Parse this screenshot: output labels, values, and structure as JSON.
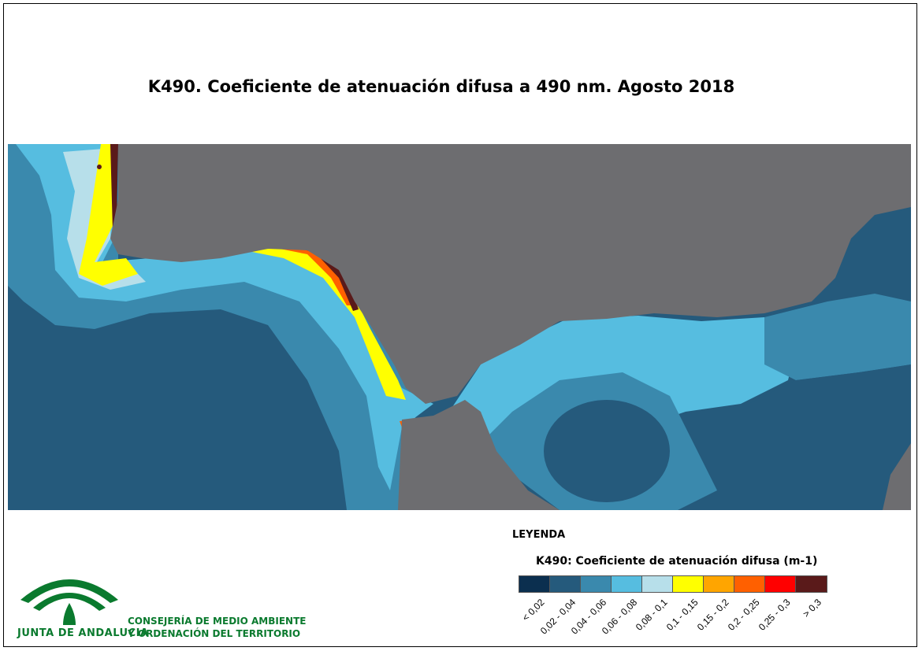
{
  "title": "K490. Coeficiente de atenuación difusa a 490 nm. Agosto 2018",
  "legend": {
    "heading": "LEYENDA",
    "subtitle": "K490: Coeficiente de atenuación difusa (m-1)",
    "classes": [
      {
        "label": "< 0,02",
        "color": "#0b2f4f"
      },
      {
        "label": "0,02 - 0,04",
        "color": "#255a7c"
      },
      {
        "label": "0,04 - 0,06",
        "color": "#3a89ad"
      },
      {
        "label": "0,06 - 0,08",
        "color": "#56bde0"
      },
      {
        "label": "0,08 - 0,1",
        "color": "#b7dfea"
      },
      {
        "label": "0,1 - 0,15",
        "color": "#ffff00"
      },
      {
        "label": "0,15 - 0,2",
        "color": "#ffa500"
      },
      {
        "label": "0,2 - 0,25",
        "color": "#ff6000"
      },
      {
        "label": "0,25 - 0,3",
        "color": "#ff0000"
      },
      {
        "label": "> 0,3",
        "color": "#5a1a1a"
      }
    ]
  },
  "colors": {
    "land": "#6d6d70",
    "brand_green": "#0a7a2e"
  },
  "organization": {
    "logo_text": "JUNTA DE ANDALUCIA",
    "department_line1": "CONSEJERÍA DE MEDIO AMBIENTE",
    "department_line2": "Y ORDENACIÓN DEL TERRITORIO"
  }
}
